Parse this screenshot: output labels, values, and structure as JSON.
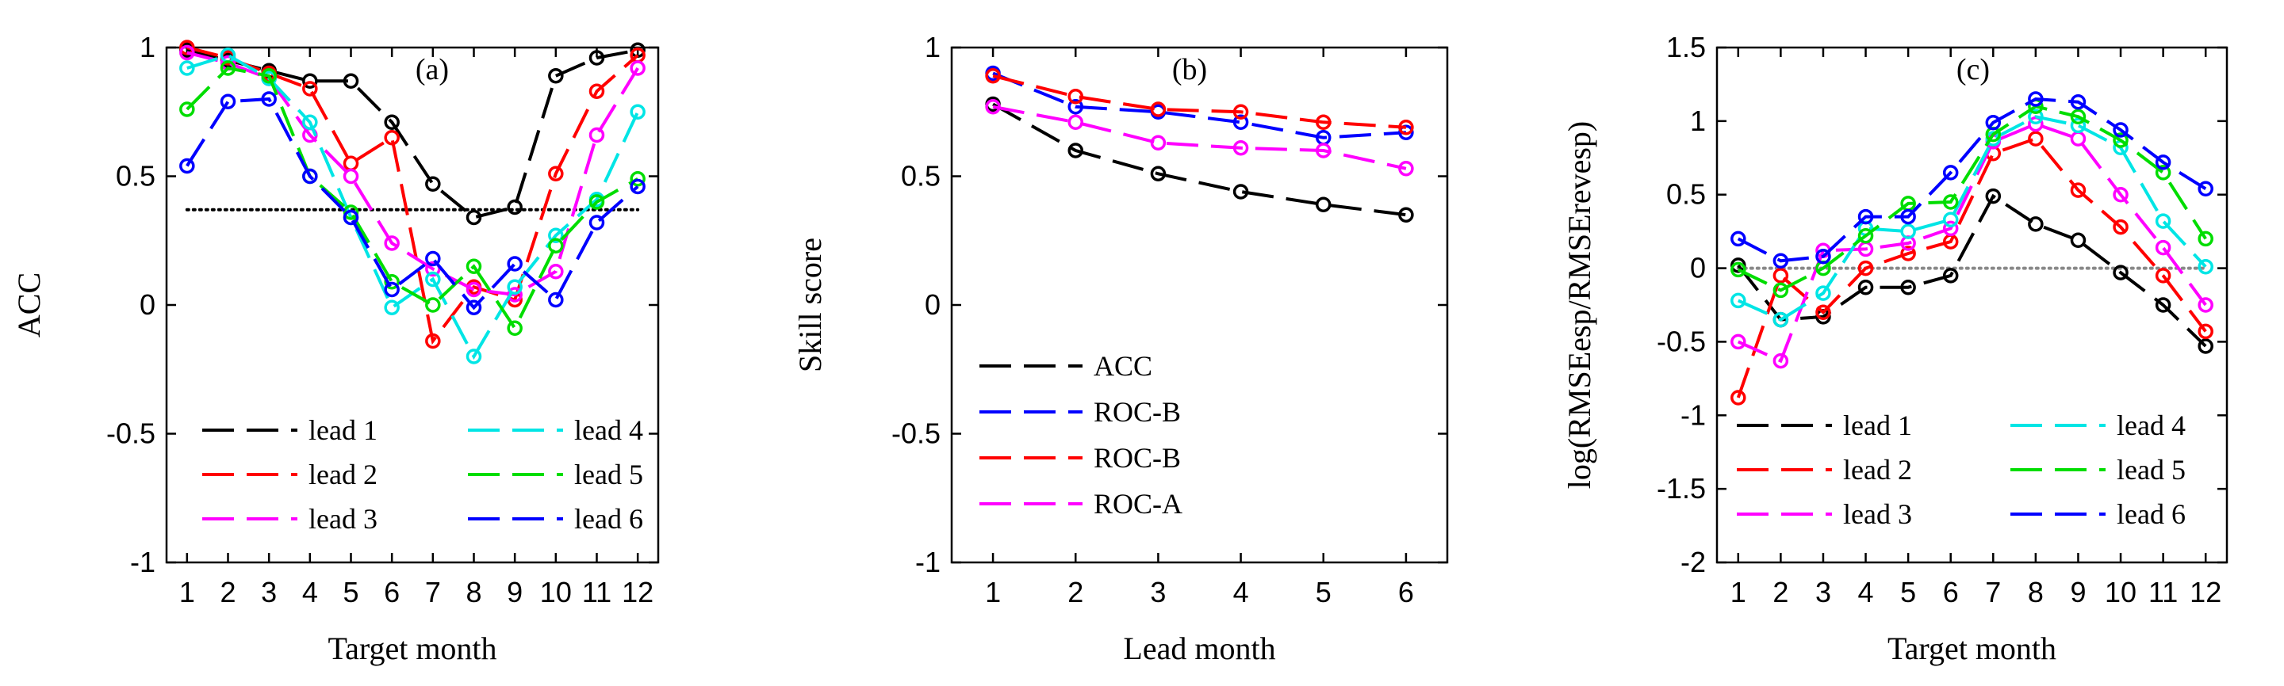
{
  "chart_data": [
    {
      "type": "line",
      "panel_label": "(a)",
      "xlabel": "Target month",
      "ylabel": "ACC",
      "x": [
        1,
        2,
        3,
        4,
        5,
        6,
        7,
        8,
        9,
        10,
        11,
        12
      ],
      "xlim": [
        0.5,
        12.5
      ],
      "ylim": [
        -1,
        1
      ],
      "x_ticks": [
        "1",
        "2",
        "3",
        "4",
        "5",
        "6",
        "7",
        "8",
        "9",
        "10",
        "11",
        "12"
      ],
      "y_ticks": [
        -1,
        -0.5,
        0,
        0.5,
        1
      ],
      "y_tick_labels": [
        "-1",
        "-0.5",
        "0",
        "0.5",
        "1"
      ],
      "reference_line": {
        "y": 0.37,
        "style": "dotted",
        "color": "#000000"
      },
      "legend": {
        "columns": 2,
        "location": "bottom"
      },
      "series": [
        {
          "name": "lead 1",
          "color": "#000000",
          "values": [
            0.99,
            0.95,
            0.91,
            0.87,
            0.87,
            0.71,
            0.47,
            0.34,
            0.38,
            0.89,
            0.96,
            0.99
          ]
        },
        {
          "name": "lead 2",
          "color": "#ff0000",
          "values": [
            1.0,
            0.96,
            0.9,
            0.84,
            0.55,
            0.65,
            -0.14,
            0.07,
            0.02,
            0.51,
            0.83,
            0.97
          ]
        },
        {
          "name": "lead 3",
          "color": "#ff00ff",
          "values": [
            0.98,
            0.94,
            0.88,
            0.66,
            0.5,
            0.24,
            0.14,
            0.06,
            0.04,
            0.13,
            0.66,
            0.92
          ]
        },
        {
          "name": "lead 4",
          "color": "#00e5e5",
          "values": [
            0.92,
            0.97,
            0.88,
            0.71,
            0.34,
            -0.01,
            0.1,
            -0.2,
            0.07,
            0.27,
            0.41,
            0.75
          ]
        },
        {
          "name": "lead 5",
          "color": "#00dd00",
          "values": [
            0.76,
            0.92,
            0.89,
            0.5,
            0.36,
            0.09,
            0.0,
            0.15,
            -0.09,
            0.23,
            0.4,
            0.49
          ]
        },
        {
          "name": "lead 6",
          "color": "#0000ff",
          "values": [
            0.54,
            0.79,
            0.8,
            0.5,
            0.34,
            0.06,
            0.18,
            -0.01,
            0.16,
            0.02,
            0.32,
            0.46
          ]
        }
      ]
    },
    {
      "type": "line",
      "panel_label": "(b)",
      "xlabel": "Lead month",
      "ylabel": "Skill score",
      "x": [
        1,
        2,
        3,
        4,
        5,
        6
      ],
      "xlim": [
        0.5,
        6.5
      ],
      "ylim": [
        -1,
        1
      ],
      "x_ticks": [
        "1",
        "2",
        "3",
        "4",
        "5",
        "6"
      ],
      "y_ticks": [
        -1,
        -0.5,
        0,
        0.5,
        1
      ],
      "y_tick_labels": [
        "-1",
        "-0.5",
        "0",
        "0.5",
        "1"
      ],
      "legend": {
        "columns": 1,
        "location": "lower-left"
      },
      "series": [
        {
          "name": "ACC",
          "color": "#000000",
          "values": [
            0.78,
            0.6,
            0.51,
            0.44,
            0.39,
            0.35
          ]
        },
        {
          "name": "ROC-B",
          "color": "#0000ff",
          "values": [
            0.9,
            0.77,
            0.75,
            0.71,
            0.65,
            0.67
          ]
        },
        {
          "name": "ROC-B",
          "color": "#ff0000",
          "values": [
            0.89,
            0.81,
            0.76,
            0.75,
            0.71,
            0.69
          ]
        },
        {
          "name": "ROC-A",
          "color": "#ff00ff",
          "values": [
            0.77,
            0.71,
            0.63,
            0.61,
            0.6,
            0.53
          ]
        }
      ]
    },
    {
      "type": "line",
      "panel_label": "(c)",
      "xlabel": "Target month",
      "ylabel": "log(RMSEesp/RMSErevesp)",
      "x": [
        1,
        2,
        3,
        4,
        5,
        6,
        7,
        8,
        9,
        10,
        11,
        12
      ],
      "xlim": [
        0.5,
        12.5
      ],
      "ylim": [
        -2,
        1.5
      ],
      "x_ticks": [
        "1",
        "2",
        "3",
        "4",
        "5",
        "6",
        "7",
        "8",
        "9",
        "10",
        "11",
        "12"
      ],
      "y_ticks": [
        -2,
        -1.5,
        -1,
        -0.5,
        0,
        0.5,
        1,
        1.5
      ],
      "y_tick_labels": [
        "-2",
        "-1.5",
        "-1",
        "-0.5",
        "0",
        "0.5",
        "1",
        "1.5"
      ],
      "reference_line": {
        "y": 0,
        "style": "dotted",
        "color": "#888888"
      },
      "legend": {
        "columns": 2,
        "location": "bottom"
      },
      "series": [
        {
          "name": "lead 1",
          "color": "#000000",
          "values": [
            0.02,
            -0.35,
            -0.33,
            -0.13,
            -0.13,
            -0.05,
            0.49,
            0.3,
            0.19,
            -0.03,
            -0.25,
            -0.53
          ]
        },
        {
          "name": "lead 2",
          "color": "#ff0000",
          "values": [
            -0.88,
            -0.05,
            -0.3,
            0.0,
            0.1,
            0.18,
            0.78,
            0.88,
            0.53,
            0.28,
            -0.05,
            -0.43
          ]
        },
        {
          "name": "lead 3",
          "color": "#ff00ff",
          "values": [
            -0.5,
            -0.63,
            0.12,
            0.13,
            0.17,
            0.27,
            0.86,
            0.98,
            0.88,
            0.5,
            0.14,
            -0.25
          ]
        },
        {
          "name": "lead 4",
          "color": "#00e5e5",
          "values": [
            -0.22,
            -0.35,
            -0.17,
            0.27,
            0.25,
            0.33,
            0.88,
            1.03,
            0.97,
            0.82,
            0.32,
            0.01
          ]
        },
        {
          "name": "lead 5",
          "color": "#00dd00",
          "values": [
            -0.01,
            -0.15,
            0.0,
            0.22,
            0.44,
            0.45,
            0.91,
            1.1,
            1.03,
            0.87,
            0.65,
            0.2
          ]
        },
        {
          "name": "lead 6",
          "color": "#0000ff",
          "values": [
            0.2,
            0.05,
            0.08,
            0.35,
            0.35,
            0.65,
            0.99,
            1.15,
            1.13,
            0.94,
            0.72,
            0.54
          ]
        }
      ]
    }
  ]
}
